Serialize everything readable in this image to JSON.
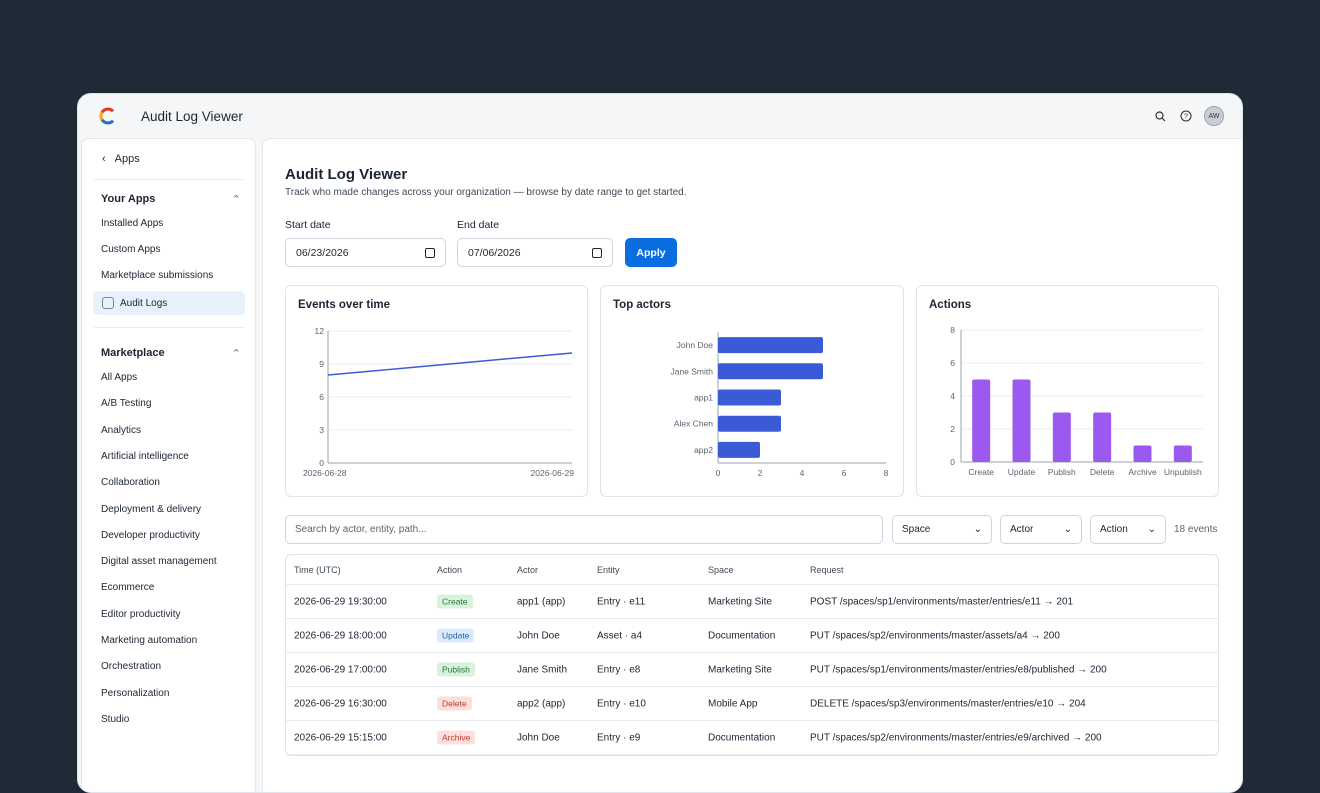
{
  "app": {
    "title": "Audit Log Viewer",
    "avatar": "AW"
  },
  "sidebar": {
    "back_label": "Apps",
    "your_apps": {
      "heading": "Your Apps",
      "items": [
        "Installed Apps",
        "Custom Apps",
        "Marketplace submissions",
        "Audit Logs"
      ]
    },
    "marketplace": {
      "heading": "Marketplace",
      "items": [
        "All Apps",
        "A/B Testing",
        "Analytics",
        "Artificial intelligence",
        "Collaboration",
        "Deployment & delivery",
        "Developer productivity",
        "Digital asset management",
        "Ecommerce",
        "Editor productivity",
        "Marketing automation",
        "Orchestration",
        "Personalization",
        "Studio"
      ]
    }
  },
  "page": {
    "title": "Audit Log Viewer",
    "subtitle": "Track who made changes across your organization — browse by date range to get started.",
    "start_label": "Start date",
    "start_value": "06/23/2026",
    "end_label": "End date",
    "end_value": "07/06/2026",
    "apply_label": "Apply"
  },
  "chart_data": [
    {
      "type": "line",
      "title": "Events over time",
      "x": [
        "2026-06-28",
        "2026-06-29"
      ],
      "values": [
        8,
        10
      ],
      "yticks": [
        "0",
        "3",
        "6",
        "9",
        "12"
      ],
      "ylim": [
        0,
        12
      ],
      "grid": true,
      "color": "#3b5bd6"
    },
    {
      "type": "bar",
      "orientation": "horizontal",
      "title": "Top actors",
      "categories": [
        "John Doe",
        "Jane Smith",
        "app1",
        "Alex Chen",
        "app2"
      ],
      "values": [
        5,
        5,
        3,
        3,
        2
      ],
      "xticks": [
        "0",
        "2",
        "4",
        "6",
        "8"
      ],
      "xlim": [
        0,
        8
      ],
      "color": "#3b5bd6"
    },
    {
      "type": "bar",
      "title": "Actions",
      "categories": [
        "Create",
        "Update",
        "Publish",
        "Delete",
        "Archive",
        "Unpublish"
      ],
      "values": [
        5,
        5,
        3,
        3,
        1,
        1
      ],
      "yticks": [
        "0",
        "2",
        "4",
        "6",
        "8"
      ],
      "ylim": [
        0,
        8
      ],
      "grid": true,
      "color": "#9b59f0"
    }
  ],
  "filters": {
    "search_placeholder": "Search by actor, entity, path...",
    "space": "Space",
    "actor": "Actor",
    "action": "Action",
    "count": "18 events"
  },
  "table": {
    "headers": [
      "Time (UTC)",
      "Action",
      "Actor",
      "Entity",
      "Space",
      "Request"
    ],
    "rows": [
      [
        "2026-06-29 19:30:00",
        "Create",
        "app1 (app)",
        "Entry · e11",
        "Marketing Site",
        "POST /spaces/sp1/environments/master/entries/e11 → 201"
      ],
      [
        "2026-06-29 18:00:00",
        "Update",
        "John Doe",
        "Asset · a4",
        "Documentation",
        "PUT /spaces/sp2/environments/master/assets/a4 → 200"
      ],
      [
        "2026-06-29 17:00:00",
        "Publish",
        "Jane Smith",
        "Entry · e8",
        "Marketing Site",
        "PUT /spaces/sp1/environments/master/entries/e8/published → 200"
      ],
      [
        "2026-06-29 16:30:00",
        "Delete",
        "app2 (app)",
        "Entry · e10",
        "Mobile App",
        "DELETE /spaces/sp3/environments/master/entries/e10 → 204"
      ],
      [
        "2026-06-29 15:15:00",
        "Archive",
        "John Doe",
        "Entry · e9",
        "Documentation",
        "PUT /spaces/sp2/environments/master/entries/e9/archived → 200"
      ]
    ]
  },
  "badge_colors": {
    "Create": {
      "bg": "#d9f2dc",
      "fg": "#1f7a32"
    },
    "Update": {
      "bg": "#dcebfb",
      "fg": "#1d5fb8"
    },
    "Publish": {
      "bg": "#d9f2dc",
      "fg": "#1f7a32"
    },
    "Delete": {
      "bg": "#fbe0e0",
      "fg": "#c0392b"
    },
    "Archive": {
      "bg": "#fbe0e0",
      "fg": "#c0392b"
    }
  }
}
